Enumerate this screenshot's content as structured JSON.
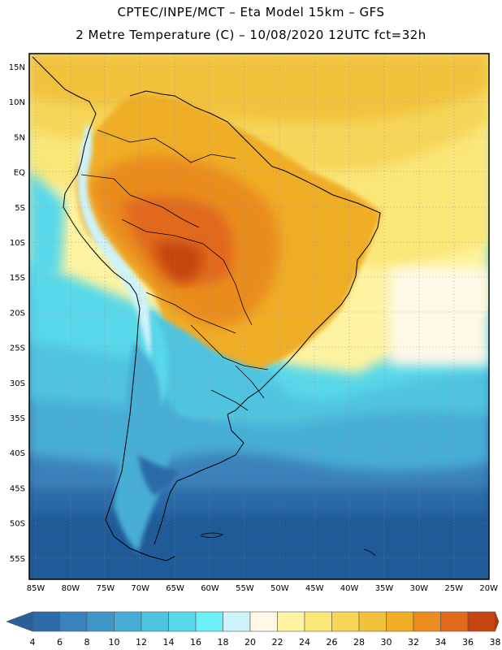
{
  "header": {
    "line1": "CPTEC/INPE/MCT –  Eta Model 15km – GFS",
    "line2": "2 Metre Temperature (C) – 10/08/2020 12UTC fct=32h"
  },
  "map": {
    "lat_labels": [
      "15N",
      "10N",
      "5N",
      "EQ",
      "5S",
      "10S",
      "15S",
      "20S",
      "25S",
      "30S",
      "35S",
      "40S",
      "45S",
      "50S",
      "55S"
    ],
    "lon_labels": [
      "85W",
      "80W",
      "75W",
      "70W",
      "65W",
      "60W",
      "55W",
      "50W",
      "45W",
      "40W",
      "35W",
      "30W",
      "25W",
      "20W"
    ]
  },
  "colorbar": {
    "tick_labels": [
      "4",
      "6",
      "8",
      "10",
      "12",
      "14",
      "16",
      "18",
      "20",
      "22",
      "24",
      "26",
      "28",
      "30",
      "32",
      "34",
      "36",
      "38"
    ],
    "colors": [
      "#2c6aa8",
      "#3a82bc",
      "#3f97c8",
      "#46aed6",
      "#4fc4e0",
      "#59d8ea",
      "#6ff0f8",
      "#cdf3fa",
      "#fff8e6",
      "#fdf3a0",
      "#fbe678",
      "#f6d558",
      "#f2c23e",
      "#f0ad26",
      "#ea8c1e",
      "#e2681a",
      "#c64410"
    ],
    "under_color": "#2a5f9a",
    "over_color": "#a83a0e"
  }
}
